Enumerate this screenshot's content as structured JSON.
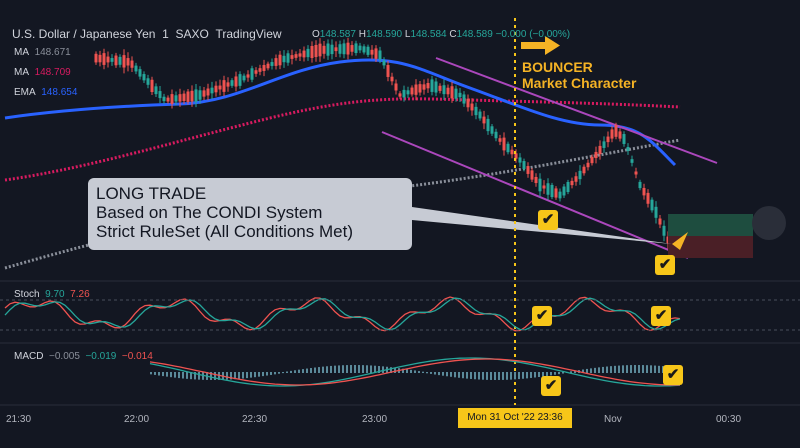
{
  "header": {
    "symbol": "U.S. Dollar / Japanese Yen",
    "interval": "1",
    "exchange": "SAXO",
    "platform": "TradingView",
    "open_label": "O",
    "open": "148.587",
    "high_label": "H",
    "high": "148.590",
    "low_label": "L",
    "low": "148.584",
    "close_label": "C",
    "close": "148.589",
    "change": "−0.000 (−0.00%)"
  },
  "indicators": {
    "ma1": {
      "label": "MA",
      "value": "148.671"
    },
    "ma2": {
      "label": "MA",
      "value": "148.709"
    },
    "ema": {
      "label": "EMA",
      "value": "148.654"
    }
  },
  "annotation": {
    "bouncer_line1": "BOUNCER",
    "bouncer_line2": "Market Character",
    "long_trade_line1": "LONG TRADE",
    "long_trade_line2": "Based on The CONDI System",
    "long_trade_line3": "Strict RuleSet (All Conditions Met)"
  },
  "check_glyph": "✔",
  "stoch": {
    "label": "Stoch",
    "k": "9.70",
    "d": "7.26"
  },
  "macd": {
    "label": "MACD",
    "hist": "−0.005",
    "macd": "−0.019",
    "signal": "−0.014"
  },
  "time_axis": {
    "labels": [
      "21:30",
      "22:00",
      "22:30",
      "23:00",
      "Nov",
      "00:30"
    ],
    "cursor_label": "Mon 31 Oct '22   23:36"
  },
  "colors": {
    "background": "#131722",
    "up_candle": "#26a69a",
    "down_candle": "#ef5350",
    "ma_blue": "#2962ff",
    "ma_red": "#e91e63",
    "channel": "#ab47bc",
    "highlight": "#f7c619"
  },
  "icons": {
    "play": "play-icon",
    "arrow": "arrow-right-icon",
    "check": "check-icon"
  }
}
